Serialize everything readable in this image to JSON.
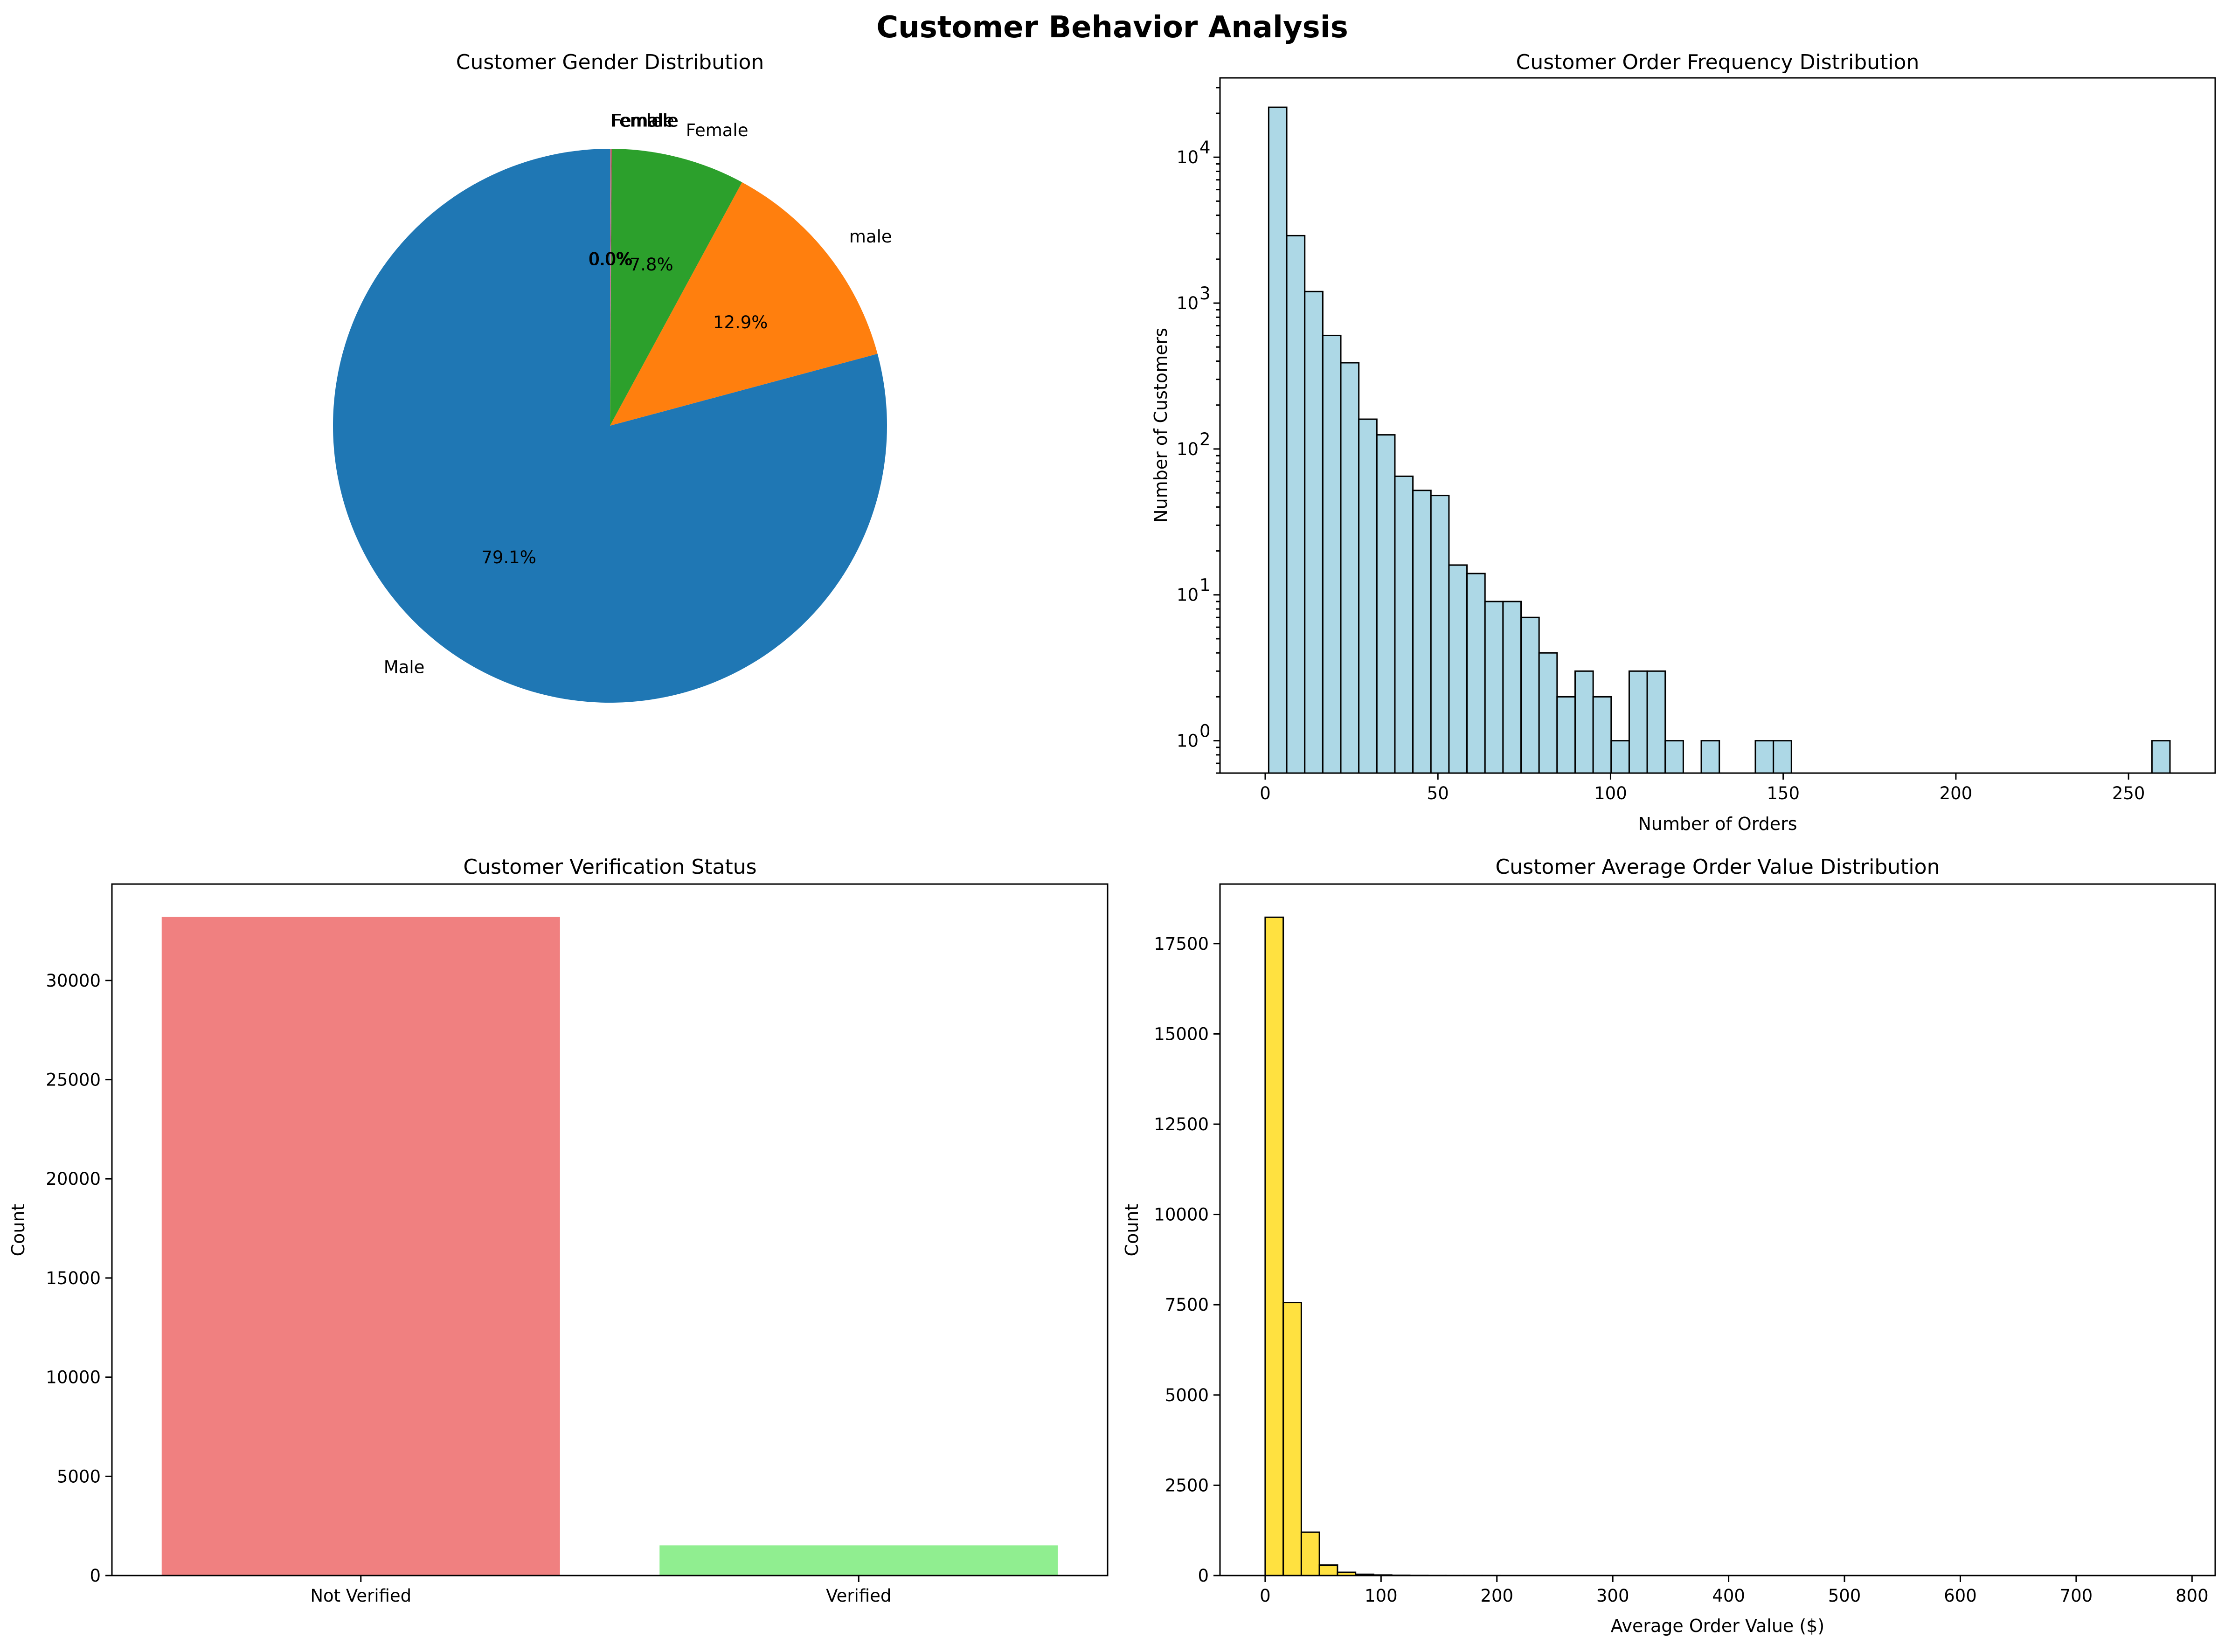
{
  "figure": {
    "title": "Customer Behavior Analysis"
  },
  "chart_data": [
    {
      "type": "pie",
      "title": "Customer Gender Distribution",
      "start_angle_deg": 90,
      "counterclockwise": true,
      "slices": [
        {
          "label": "Male",
          "percent": 79.1,
          "pct_text": "79.1%",
          "color": "#1f77b4"
        },
        {
          "label": "male",
          "percent": 12.9,
          "pct_text": "12.9%",
          "color": "#ff7f0e"
        },
        {
          "label": "Female",
          "percent": 7.8,
          "pct_text": "7.8%",
          "color": "#2ca02c"
        },
        {
          "label": "Female",
          "percent": 0.02,
          "pct_text": "0.0%",
          "color": "#d62728"
        },
        {
          "label": "Femaile",
          "percent": 0.02,
          "pct_text": "0.0%",
          "color": "#9467bd"
        },
        {
          "label": "Fe",
          "percent": 0.02,
          "pct_text": "0.0%",
          "color": "#8c564b"
        },
        {
          "label": "Femalle",
          "percent": 0.02,
          "pct_text": "0.0%",
          "color": "#e377c2"
        },
        {
          "label": "Femle",
          "percent": 0.02,
          "pct_text": "0.0%",
          "color": "#7f7f7f"
        }
      ]
    },
    {
      "type": "bar",
      "subtype": "histogram",
      "title": "Customer Order Frequency Distribution",
      "xlabel": "Number of Orders",
      "ylabel": "Number of Customers",
      "yscale": "log",
      "xlim": [
        -13.1,
        275.1
      ],
      "ylim": [
        0.6,
        35000
      ],
      "xticks": [
        0,
        50,
        100,
        150,
        200,
        250
      ],
      "yticks": [
        {
          "value": 1,
          "base": "10",
          "exp": "0"
        },
        {
          "value": 10,
          "base": "10",
          "exp": "1"
        },
        {
          "value": 100,
          "base": "10",
          "exp": "2"
        },
        {
          "value": 1000,
          "base": "10",
          "exp": "3"
        },
        {
          "value": 10000,
          "base": "10",
          "exp": "4"
        }
      ],
      "bin_start": 1,
      "bin_width": 5.22,
      "bar_color": "#add8e6",
      "edge_color": "#000000",
      "counts": [
        22000,
        2900,
        1200,
        600,
        390,
        160,
        125,
        65,
        52,
        48,
        16,
        14,
        9,
        9,
        7,
        4,
        2,
        3,
        2,
        1,
        3,
        3,
        1,
        0,
        1,
        0,
        0,
        1,
        1,
        0,
        0,
        0,
        0,
        0,
        0,
        0,
        0,
        0,
        0,
        0,
        0,
        0,
        0,
        0,
        0,
        0,
        0,
        0,
        0,
        1
      ]
    },
    {
      "type": "bar",
      "title": "Customer Verification Status",
      "xlabel": "",
      "ylabel": "Count",
      "categories": [
        "Not Verified",
        "Verified"
      ],
      "values": [
        33200,
        1520
      ],
      "colors": [
        "#f08080",
        "#90ee90"
      ],
      "ylim": [
        0,
        34860
      ],
      "yticks": [
        0,
        5000,
        10000,
        15000,
        20000,
        25000,
        30000
      ]
    },
    {
      "type": "bar",
      "subtype": "histogram",
      "title": "Customer Average Order Value Distribution",
      "xlabel": "Average Order Value ($)",
      "ylabel": "Count",
      "xlim": [
        -39,
        820
      ],
      "ylim": [
        0,
        19150
      ],
      "xticks": [
        0,
        100,
        200,
        300,
        400,
        500,
        600,
        700,
        800
      ],
      "yticks": [
        0,
        2500,
        5000,
        7500,
        10000,
        12500,
        15000,
        17500
      ],
      "bin_start": 0,
      "bin_width": 15.6,
      "bar_color": "#ffd700",
      "edge_color": "#000000",
      "counts": [
        18230,
        7560,
        1200,
        290,
        90,
        35,
        15,
        8,
        4,
        2,
        1,
        1,
        1,
        0,
        0,
        0,
        0,
        0,
        0,
        0,
        0,
        0,
        0,
        0,
        0,
        0,
        0,
        0,
        0,
        0,
        0,
        0,
        0,
        0,
        0,
        0,
        0,
        0,
        0,
        0,
        0,
        0,
        0,
        0,
        0,
        0,
        0,
        0,
        0,
        1
      ]
    }
  ]
}
